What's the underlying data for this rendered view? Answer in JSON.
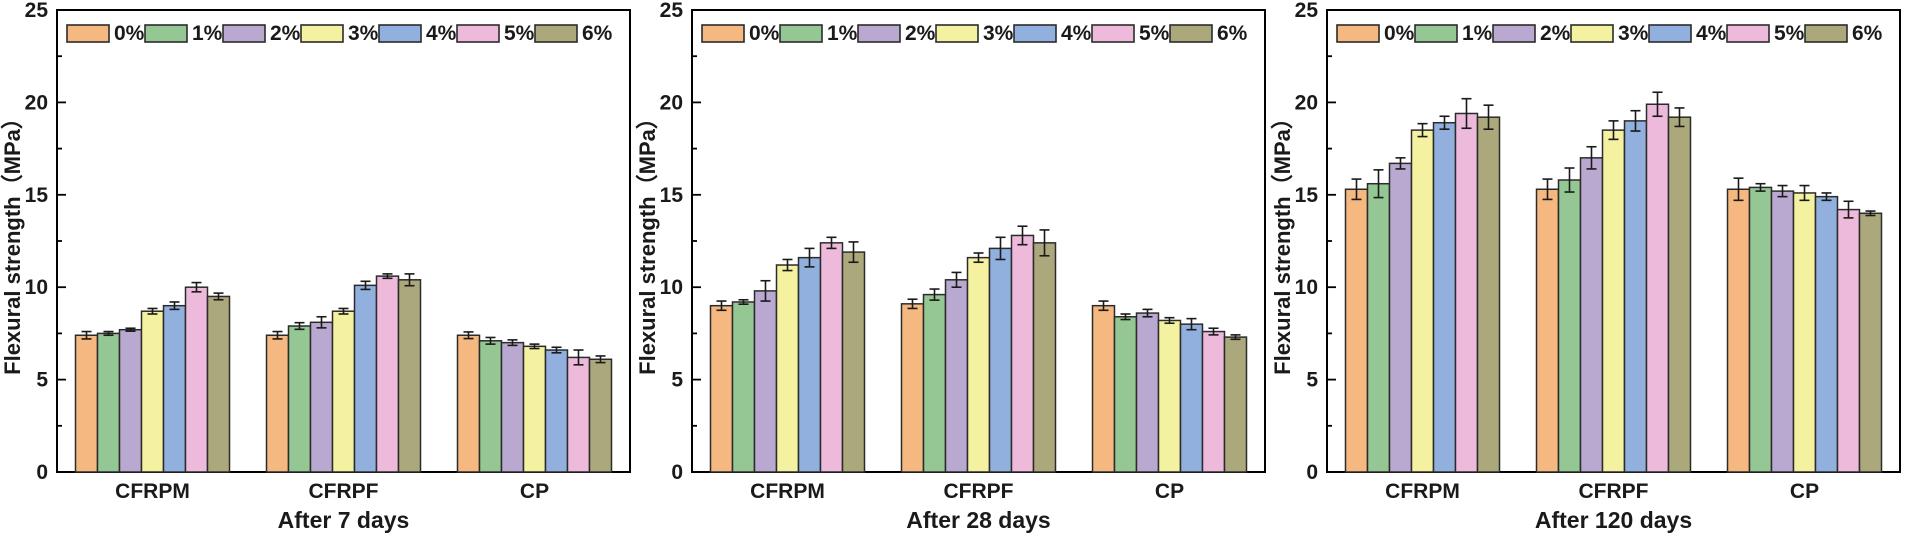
{
  "figure": {
    "background": "#ffffff",
    "text_color": "#1a1a1a",
    "frame_color": "#000000",
    "bar_border_color": "#2b2b2b",
    "error_bar_color": "#1a1a1a"
  },
  "legend": {
    "labels": [
      "0%",
      "1%",
      "2%",
      "3%",
      "4%",
      "5%",
      "6%"
    ],
    "position": "top-left-inside-horizontal"
  },
  "palette": [
    "#F5B880",
    "#94C794",
    "#B9A9D1",
    "#F4F1A1",
    "#91B0DD",
    "#EEBADC",
    "#ABA97B"
  ],
  "chart_data": [
    {
      "type": "bar",
      "title": "After 7 days",
      "xlabel": "After 7 days",
      "ylabel": "Flexural strength（MPa）",
      "ylim": [
        0,
        25
      ],
      "yticks": [
        0,
        5,
        10,
        15,
        20,
        25
      ],
      "minor_tick_step": 2.5,
      "grid": false,
      "categories": [
        "CFRPM",
        "CFRPF",
        "CP"
      ],
      "series": [
        {
          "name": "0%",
          "color": "#F5B880",
          "values": [
            7.4,
            7.4,
            7.4
          ],
          "errors": [
            0.2,
            0.2,
            0.18
          ]
        },
        {
          "name": "1%",
          "color": "#94C794",
          "values": [
            7.5,
            7.9,
            7.1
          ],
          "errors": [
            0.1,
            0.18,
            0.18
          ]
        },
        {
          "name": "2%",
          "color": "#B9A9D1",
          "values": [
            7.7,
            8.1,
            7.0
          ],
          "errors": [
            0.08,
            0.3,
            0.15
          ]
        },
        {
          "name": "3%",
          "color": "#F4F1A1",
          "values": [
            8.7,
            8.7,
            6.8
          ],
          "errors": [
            0.15,
            0.15,
            0.12
          ]
        },
        {
          "name": "4%",
          "color": "#91B0DD",
          "values": [
            9.0,
            10.1,
            6.6
          ],
          "errors": [
            0.2,
            0.22,
            0.15
          ]
        },
        {
          "name": "5%",
          "color": "#EEBADC",
          "values": [
            10.0,
            10.6,
            6.2
          ],
          "errors": [
            0.25,
            0.12,
            0.4
          ]
        },
        {
          "name": "6%",
          "color": "#ABA97B",
          "values": [
            9.5,
            10.4,
            6.1
          ],
          "errors": [
            0.18,
            0.32,
            0.18
          ]
        }
      ]
    },
    {
      "type": "bar",
      "title": "After 28 days",
      "xlabel": "After 28 days",
      "ylabel": "Flexural strength（MPa）",
      "ylim": [
        0,
        25
      ],
      "yticks": [
        0,
        5,
        10,
        15,
        20,
        25
      ],
      "minor_tick_step": 2.5,
      "grid": false,
      "categories": [
        "CFRPM",
        "CFRPF",
        "CP"
      ],
      "series": [
        {
          "name": "0%",
          "color": "#F5B880",
          "values": [
            9.0,
            9.1,
            9.0
          ],
          "errors": [
            0.25,
            0.25,
            0.25
          ]
        },
        {
          "name": "1%",
          "color": "#94C794",
          "values": [
            9.2,
            9.6,
            8.4
          ],
          "errors": [
            0.12,
            0.3,
            0.15
          ]
        },
        {
          "name": "2%",
          "color": "#B9A9D1",
          "values": [
            9.8,
            10.4,
            8.6
          ],
          "errors": [
            0.55,
            0.4,
            0.2
          ]
        },
        {
          "name": "3%",
          "color": "#F4F1A1",
          "values": [
            11.2,
            11.6,
            8.2
          ],
          "errors": [
            0.3,
            0.25,
            0.15
          ]
        },
        {
          "name": "4%",
          "color": "#91B0DD",
          "values": [
            11.6,
            12.1,
            8.0
          ],
          "errors": [
            0.5,
            0.6,
            0.3
          ]
        },
        {
          "name": "5%",
          "color": "#EEBADC",
          "values": [
            12.4,
            12.8,
            7.6
          ],
          "errors": [
            0.3,
            0.5,
            0.18
          ]
        },
        {
          "name": "6%",
          "color": "#ABA97B",
          "values": [
            11.9,
            12.4,
            7.3
          ],
          "errors": [
            0.55,
            0.7,
            0.12
          ]
        }
      ]
    },
    {
      "type": "bar",
      "title": "After 120 days",
      "xlabel": "After 120 days",
      "ylabel": "Flexural strength（MPa）",
      "ylim": [
        0,
        25
      ],
      "yticks": [
        0,
        5,
        10,
        15,
        20,
        25
      ],
      "minor_tick_step": 2.5,
      "grid": false,
      "categories": [
        "CFRPM",
        "CFRPF",
        "CP"
      ],
      "series": [
        {
          "name": "0%",
          "color": "#F5B880",
          "values": [
            15.3,
            15.3,
            15.3
          ],
          "errors": [
            0.55,
            0.55,
            0.6
          ]
        },
        {
          "name": "1%",
          "color": "#94C794",
          "values": [
            15.6,
            15.8,
            15.4
          ],
          "errors": [
            0.75,
            0.65,
            0.2
          ]
        },
        {
          "name": "2%",
          "color": "#B9A9D1",
          "values": [
            16.7,
            17.0,
            15.2
          ],
          "errors": [
            0.3,
            0.6,
            0.3
          ]
        },
        {
          "name": "3%",
          "color": "#F4F1A1",
          "values": [
            18.5,
            18.5,
            15.1
          ],
          "errors": [
            0.35,
            0.5,
            0.4
          ]
        },
        {
          "name": "4%",
          "color": "#91B0DD",
          "values": [
            18.9,
            19.0,
            14.9
          ],
          "errors": [
            0.35,
            0.55,
            0.2
          ]
        },
        {
          "name": "5%",
          "color": "#EEBADC",
          "values": [
            19.4,
            19.9,
            14.2
          ],
          "errors": [
            0.8,
            0.65,
            0.45
          ]
        },
        {
          "name": "6%",
          "color": "#ABA97B",
          "values": [
            19.2,
            19.2,
            14.0
          ],
          "errors": [
            0.65,
            0.5,
            0.12
          ]
        }
      ]
    }
  ]
}
